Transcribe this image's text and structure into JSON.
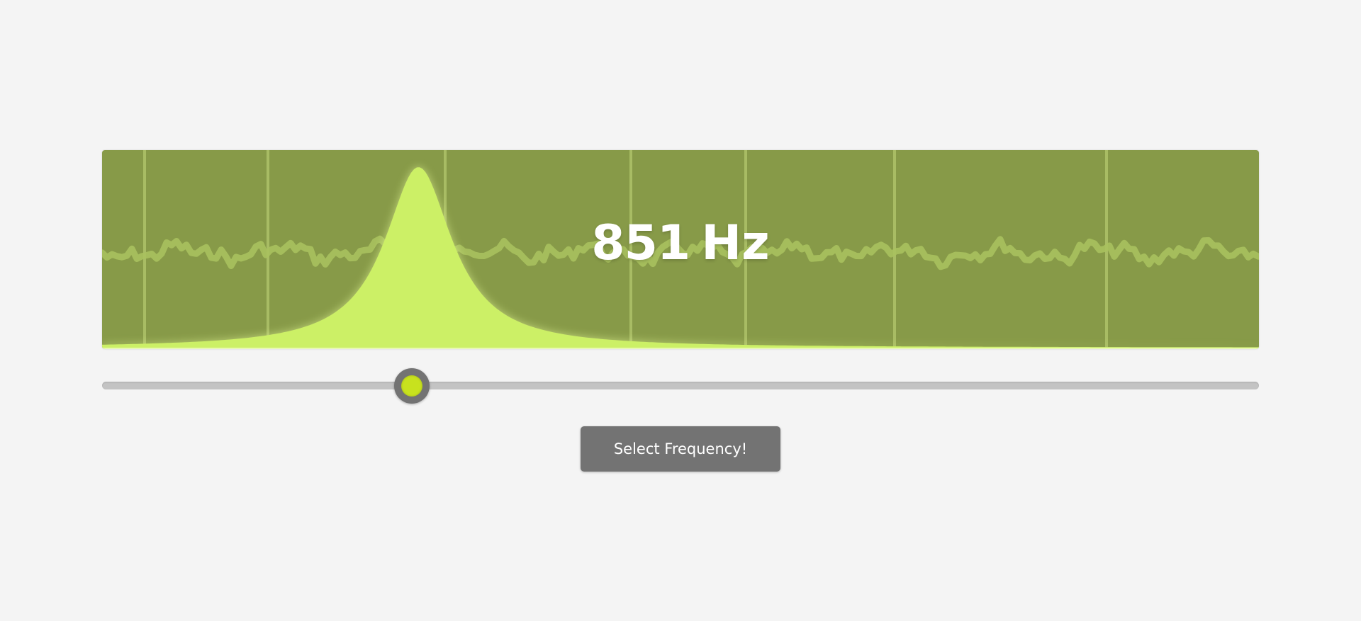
{
  "display": {
    "frequency_value": "851",
    "frequency_unit": "Hz"
  },
  "slider": {
    "value_fraction": 0.268
  },
  "button": {
    "label": "Select Frequency!"
  },
  "colors": {
    "panel_background": "#879a48",
    "peak_fill": "#ccf066",
    "noise_line": "#a9c15e",
    "grid_line": "#c3d97c",
    "thumb_ring": "#737373",
    "thumb_center": "#c8e21e",
    "button_background": "#737373"
  }
}
